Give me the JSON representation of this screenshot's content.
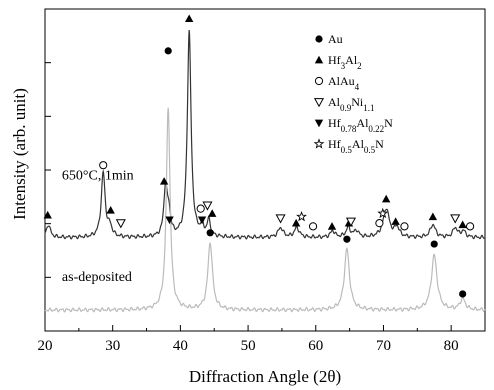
{
  "chart_data": {
    "type": "line",
    "xlabel": "Diffraction Angle (2θ)",
    "ylabel": "Intensity (arb. unit)",
    "xlim": [
      20,
      85
    ],
    "ylim": [
      0,
      100
    ],
    "x_ticks": [
      20,
      30,
      40,
      50,
      60,
      70,
      80
    ],
    "y_ticks": "unlabeled",
    "grid": false,
    "legend_placement": "top-right",
    "legend": [
      {
        "marker": "filled-circle",
        "sub": [
          {
            "t": "Au",
            "s": ""
          }
        ]
      },
      {
        "marker": "filled-triangle-up",
        "sub": [
          {
            "t": "Hf",
            "s": ""
          },
          {
            "t": "3",
            "s": "sub"
          },
          {
            "t": "Al",
            "s": ""
          },
          {
            "t": "2",
            "s": "sub"
          }
        ]
      },
      {
        "marker": "open-circle",
        "sub": [
          {
            "t": "AlAu",
            "s": ""
          },
          {
            "t": "4",
            "s": "sub"
          }
        ]
      },
      {
        "marker": "open-triangle-down",
        "sub": [
          {
            "t": "Al",
            "s": ""
          },
          {
            "t": "0.9",
            "s": "sub"
          },
          {
            "t": "Ni",
            "s": ""
          },
          {
            "t": "1.1",
            "s": "sub"
          }
        ]
      },
      {
        "marker": "filled-triangle-down",
        "sub": [
          {
            "t": "Hf",
            "s": ""
          },
          {
            "t": "0.78",
            "s": "sub"
          },
          {
            "t": "Al",
            "s": ""
          },
          {
            "t": "0.22",
            "s": "sub"
          },
          {
            "t": "N",
            "s": ""
          }
        ]
      },
      {
        "marker": "open-star",
        "sub": [
          {
            "t": "Hf",
            "s": ""
          },
          {
            "t": "0.5",
            "s": "sub"
          },
          {
            "t": "Al",
            "s": ""
          },
          {
            "t": "0.5",
            "s": "sub"
          },
          {
            "t": "N",
            "s": ""
          }
        ]
      }
    ],
    "series": [
      {
        "label_text": "650°C, 1min",
        "color": "#333333",
        "baseline": 29,
        "peaks": [
          {
            "x": 20.5,
            "h": 4,
            "w": 0.35
          },
          {
            "x": 28.6,
            "h": 20,
            "w": 0.35
          },
          {
            "x": 29.6,
            "h": 3,
            "w": 0.35
          },
          {
            "x": 37.8,
            "h": 15,
            "w": 0.3
          },
          {
            "x": 38.3,
            "h": 7,
            "w": 0.3
          },
          {
            "x": 41.3,
            "h": 64,
            "w": 0.33
          },
          {
            "x": 43.2,
            "h": 3,
            "w": 0.3
          },
          {
            "x": 44.2,
            "h": 5,
            "w": 0.3
          },
          {
            "x": 54.8,
            "h": 3,
            "w": 0.45
          },
          {
            "x": 57.2,
            "h": 3,
            "w": 0.45
          },
          {
            "x": 62.5,
            "h": 2,
            "w": 0.4
          },
          {
            "x": 64.8,
            "h": 3,
            "w": 0.4
          },
          {
            "x": 66.0,
            "h": 2,
            "w": 0.4
          },
          {
            "x": 70.4,
            "h": 9,
            "w": 0.55
          },
          {
            "x": 72.0,
            "h": 3,
            "w": 0.4
          },
          {
            "x": 77.3,
            "h": 4,
            "w": 0.45
          },
          {
            "x": 80.6,
            "h": 3,
            "w": 0.4
          },
          {
            "x": 81.8,
            "h": 2,
            "w": 0.4
          }
        ]
      },
      {
        "label_text": "as-deposited",
        "color": "#bbbbbb",
        "baseline": 6.5,
        "peaks": [
          {
            "x": 38.2,
            "h": 63,
            "w": 0.33
          },
          {
            "x": 44.4,
            "h": 21,
            "w": 0.4
          },
          {
            "x": 64.6,
            "h": 19,
            "w": 0.45
          },
          {
            "x": 77.5,
            "h": 17,
            "w": 0.5
          },
          {
            "x": 81.7,
            "h": 3.5,
            "w": 0.45
          }
        ]
      }
    ],
    "markers": [
      {
        "m": "filled-triangle-up",
        "x": 20.4,
        "y": 36
      },
      {
        "m": "open-circle",
        "x": 28.6,
        "y": 51.5
      },
      {
        "m": "filled-triangle-up",
        "x": 29.7,
        "y": 37.5
      },
      {
        "m": "open-triangle-down",
        "x": 31.2,
        "y": 33.5
      },
      {
        "m": "filled-triangle-up",
        "x": 37.6,
        "y": 46.5
      },
      {
        "m": "filled-circle",
        "x": 38.2,
        "y": 87
      },
      {
        "m": "filled-triangle-down",
        "x": 38.4,
        "y": 34.5
      },
      {
        "m": "filled-triangle-up",
        "x": 41.3,
        "y": 97
      },
      {
        "m": "open-circle",
        "x": 43.0,
        "y": 38
      },
      {
        "m": "filled-triangle-down",
        "x": 43.2,
        "y": 34.5
      },
      {
        "m": "open-triangle-down",
        "x": 44.0,
        "y": 39
      },
      {
        "m": "filled-triangle-up",
        "x": 44.7,
        "y": 36.5
      },
      {
        "m": "open-triangle-down",
        "x": 54.8,
        "y": 35
      },
      {
        "m": "filled-triangle-up",
        "x": 57.1,
        "y": 33.5
      },
      {
        "m": "open-star",
        "x": 57.9,
        "y": 35.5
      },
      {
        "m": "open-circle",
        "x": 59.6,
        "y": 32.5
      },
      {
        "m": "filled-triangle-up",
        "x": 62.4,
        "y": 32.5
      },
      {
        "m": "filled-triangle-up",
        "x": 64.9,
        "y": 33.5
      },
      {
        "m": "open-triangle-down",
        "x": 65.2,
        "y": 34
      },
      {
        "m": "open-circle",
        "x": 69.4,
        "y": 33.5
      },
      {
        "m": "open-star",
        "x": 69.9,
        "y": 36.5
      },
      {
        "m": "filled-triangle-up",
        "x": 70.4,
        "y": 41
      },
      {
        "m": "filled-triangle-up",
        "x": 71.8,
        "y": 34
      },
      {
        "m": "open-circle",
        "x": 73.1,
        "y": 32.5
      },
      {
        "m": "filled-triangle-up",
        "x": 77.3,
        "y": 35.5
      },
      {
        "m": "open-triangle-down",
        "x": 80.6,
        "y": 35
      },
      {
        "m": "filled-triangle-up",
        "x": 81.7,
        "y": 33
      },
      {
        "m": "open-circle",
        "x": 82.8,
        "y": 32.5
      },
      {
        "m": "filled-circle",
        "x": 44.4,
        "y": 30.5
      },
      {
        "m": "filled-circle",
        "x": 64.6,
        "y": 28.5
      },
      {
        "m": "filled-circle",
        "x": 77.5,
        "y": 27
      },
      {
        "m": "filled-circle",
        "x": 81.7,
        "y": 11.5
      }
    ]
  }
}
